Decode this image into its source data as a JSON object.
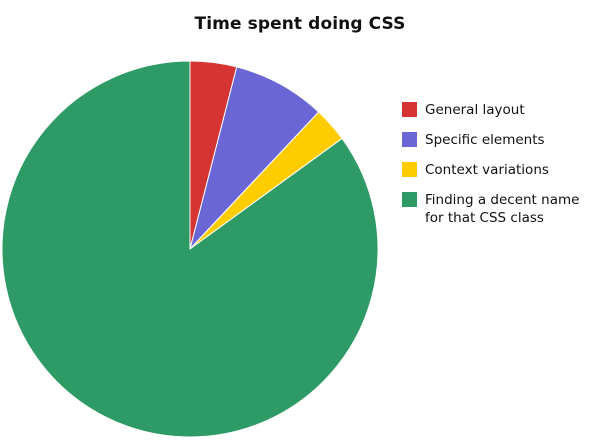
{
  "chart_data": {
    "type": "pie",
    "title": "Time spent doing CSS",
    "start_angle_deg": 0,
    "direction": "clockwise",
    "legend_position": "right",
    "slices": [
      {
        "label": "General layout",
        "value": 4,
        "color": "#d63333"
      },
      {
        "label": "Specific elements",
        "value": 8,
        "color": "#6a66d6"
      },
      {
        "label": "Context variations",
        "value": 3,
        "color": "#ffcc00"
      },
      {
        "label": "Finding a decent name\nfor that CSS class",
        "value": 85,
        "color": "#2e9a66"
      }
    ]
  }
}
